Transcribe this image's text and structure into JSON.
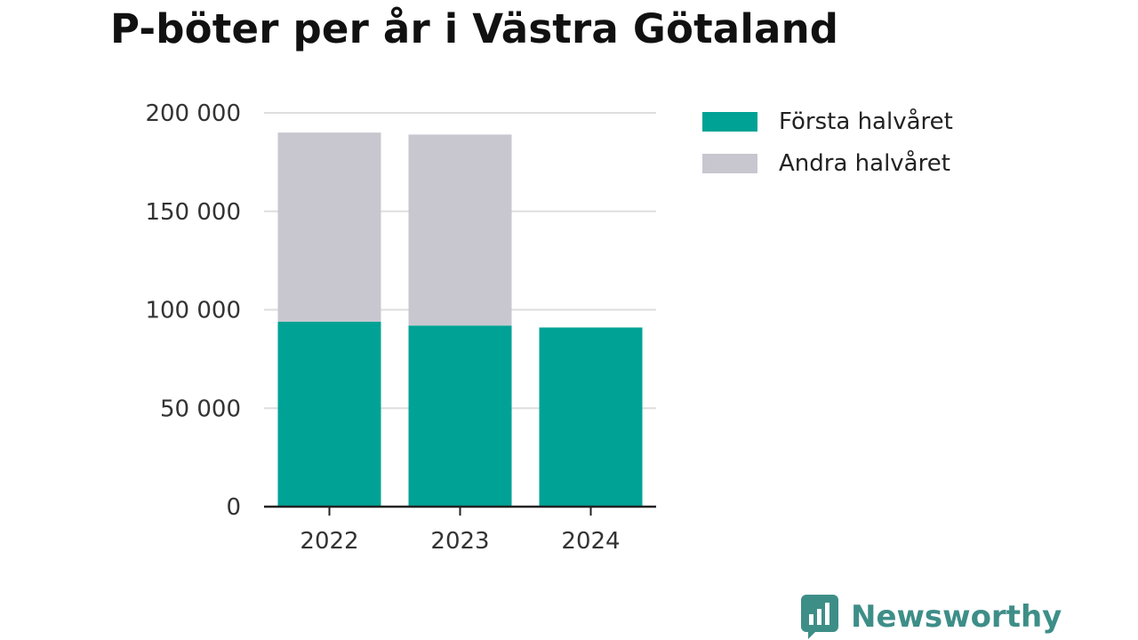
{
  "title": "P-böter per år i Västra Götaland",
  "brand": {
    "name": "Newsworthy",
    "icon": "chart-bubble-icon",
    "color": "#3e8e88"
  },
  "colors": {
    "first": "#00a295",
    "second": "#c8c7d0",
    "grid": "#dedede",
    "axis": "#222222"
  },
  "chart_data": {
    "type": "bar",
    "stacked": true,
    "title": "P-böter per år i Västra Götaland",
    "xlabel": "",
    "ylabel": "",
    "categories": [
      "2022",
      "2023",
      "2024"
    ],
    "series": [
      {
        "name": "Första halvåret",
        "color": "#00a295",
        "values": [
          94000,
          92000,
          91000
        ]
      },
      {
        "name": "Andra halvåret",
        "color": "#c8c7d0",
        "values": [
          96000,
          97000,
          0
        ]
      }
    ],
    "ylim": [
      0,
      200000
    ],
    "yticks": [
      0,
      50000,
      100000,
      150000,
      200000
    ],
    "ytick_labels": [
      "0",
      "50 000",
      "100 000",
      "150 000",
      "200 000"
    ],
    "grid": true,
    "legend_position": "right"
  }
}
